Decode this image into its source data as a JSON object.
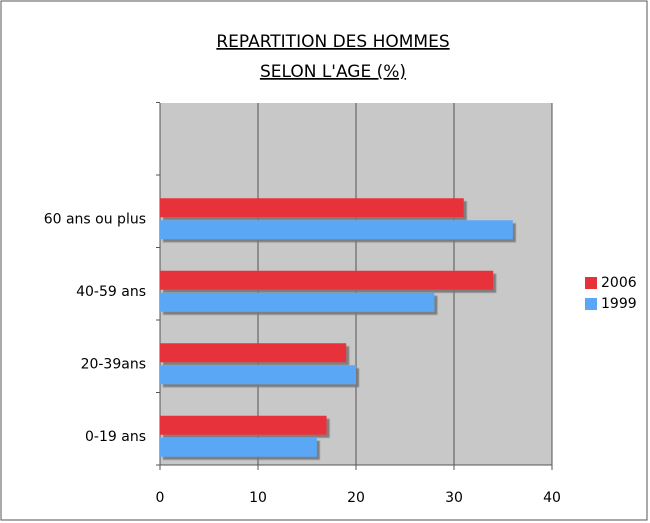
{
  "chart_data": {
    "type": "hbar",
    "title": [
      "REPARTITION DES HOMMES",
      "SELON L'AGE (%)"
    ],
    "categories": [
      "0-19 ans",
      "20-39ans",
      "40-59 ans",
      "60 ans ou plus"
    ],
    "series": [
      {
        "name": "2006",
        "color": "#e8303a",
        "values": [
          17,
          19,
          34,
          31
        ]
      },
      {
        "name": "1999",
        "color": "#5aa7f5",
        "values": [
          16,
          20,
          28,
          36
        ]
      }
    ],
    "xlim": [
      0,
      40
    ],
    "xticks": [
      0,
      10,
      20,
      30,
      40
    ],
    "grid": true,
    "legend": "right"
  }
}
